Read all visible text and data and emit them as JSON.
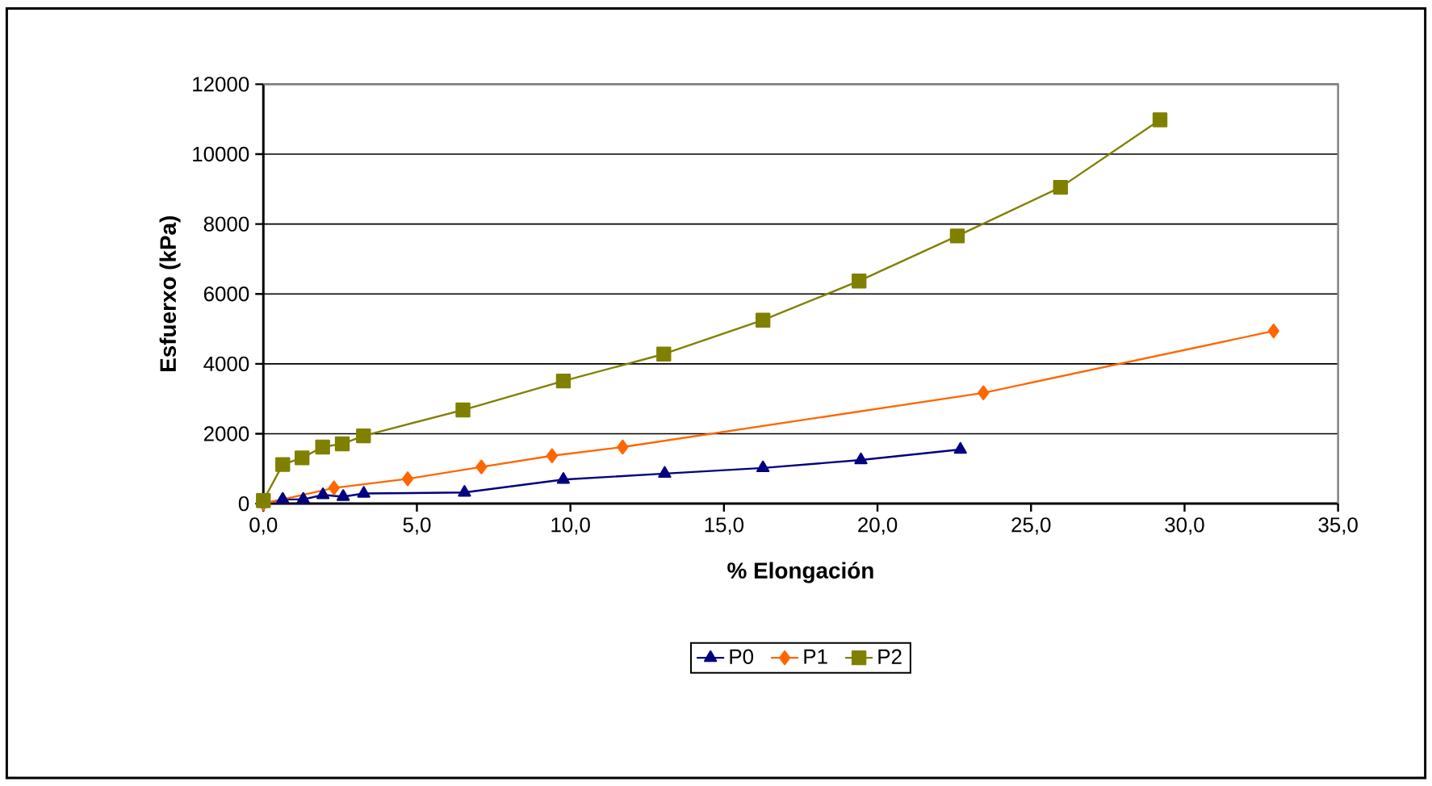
{
  "chart_data": {
    "type": "line",
    "xlabel": "% Elongación",
    "ylabel": "Esfuerxo (kPa)",
    "xlim": [
      0,
      35
    ],
    "ylim": [
      0,
      12000
    ],
    "xticks": [
      {
        "value": 0,
        "label": "0,0"
      },
      {
        "value": 5,
        "label": "5,0"
      },
      {
        "value": 10,
        "label": "10,0"
      },
      {
        "value": 15,
        "label": "15,0"
      },
      {
        "value": 20,
        "label": "20,0"
      },
      {
        "value": 25,
        "label": "25,0"
      },
      {
        "value": 30,
        "label": "30,0"
      },
      {
        "value": 35,
        "label": "35,0"
      }
    ],
    "yticks": [
      0,
      2000,
      4000,
      6000,
      8000,
      10000,
      12000
    ],
    "grid": "y",
    "legend": "bottom",
    "series": [
      {
        "name": "P0",
        "color": "#000080",
        "marker": "triangle",
        "x": [
          0,
          0.63,
          1.3,
          1.94,
          2.6,
          3.27,
          6.55,
          9.77,
          13.07,
          16.27,
          19.46,
          22.7
        ],
        "values": [
          0,
          120,
          120,
          250,
          200,
          290,
          320,
          690,
          860,
          1020,
          1250,
          1550
        ]
      },
      {
        "name": "P1",
        "color": "#ff6600",
        "marker": "diamond",
        "x": [
          0,
          2.3,
          4.7,
          7.1,
          9.4,
          11.7,
          23.45,
          32.9
        ],
        "values": [
          0,
          450,
          710,
          1050,
          1370,
          1620,
          3170,
          4940
        ]
      },
      {
        "name": "P2",
        "color": "#808000",
        "marker": "square",
        "x": [
          0,
          0.63,
          1.26,
          1.93,
          2.57,
          3.26,
          6.5,
          9.77,
          13.04,
          16.27,
          19.4,
          22.6,
          25.96,
          29.2
        ],
        "values": [
          90,
          1120,
          1310,
          1620,
          1710,
          1940,
          2680,
          3510,
          4280,
          5250,
          6370,
          7660,
          9050,
          10980
        ]
      }
    ]
  }
}
